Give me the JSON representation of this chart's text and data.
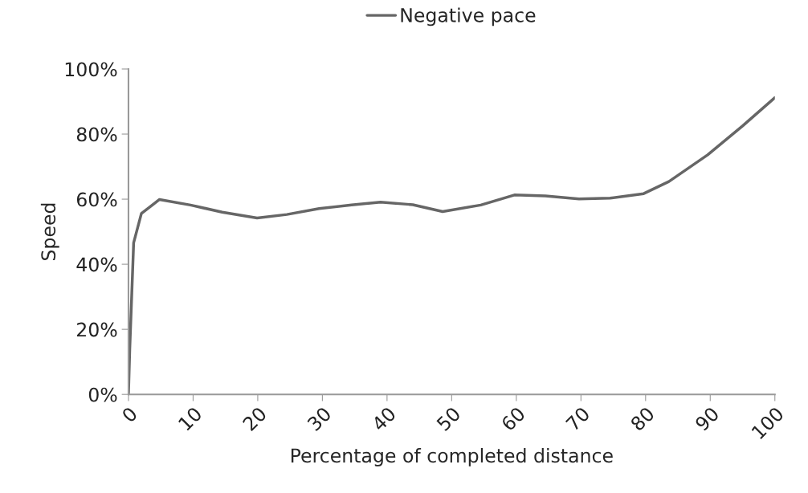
{
  "chart_data": {
    "type": "line",
    "xlabel": "Percentage of completed distance",
    "ylabel": "Speed",
    "x": [
      0,
      0.2,
      0.8,
      2.0,
      4.8,
      9.6,
      14.5,
      19.9,
      24.5,
      29.5,
      34.5,
      39.0,
      44.0,
      48.6,
      54.5,
      59.7,
      64.5,
      69.7,
      74.5,
      79.7,
      83.6,
      89.6,
      95.0,
      100
    ],
    "series": [
      {
        "name": "Negative pace",
        "color": "#666666",
        "values": [
          0,
          14,
          46.6,
          55.6,
          59.9,
          58.2,
          56,
          54.2,
          55.3,
          57.1,
          58.2,
          59.1,
          58.3,
          56.2,
          58.2,
          61.3,
          61,
          60.1,
          60.3,
          61.7,
          65.4,
          73.6,
          82.5,
          91.2
        ]
      }
    ],
    "xlim": [
      0,
      100
    ],
    "xticks": [
      0,
      10,
      20,
      30,
      40,
      50,
      60,
      70,
      80,
      90,
      100
    ],
    "ylim": [
      0,
      100
    ],
    "yticks": [
      {
        "value": 0,
        "label": "0%"
      },
      {
        "value": 20,
        "label": "20%"
      },
      {
        "value": 40,
        "label": "40%"
      },
      {
        "value": 60,
        "label": "60%"
      },
      {
        "value": 80,
        "label": "80%"
      },
      {
        "value": 100,
        "label": "100%"
      }
    ],
    "grid": false,
    "legend": "top",
    "marker": "none",
    "line_style": "solid"
  }
}
